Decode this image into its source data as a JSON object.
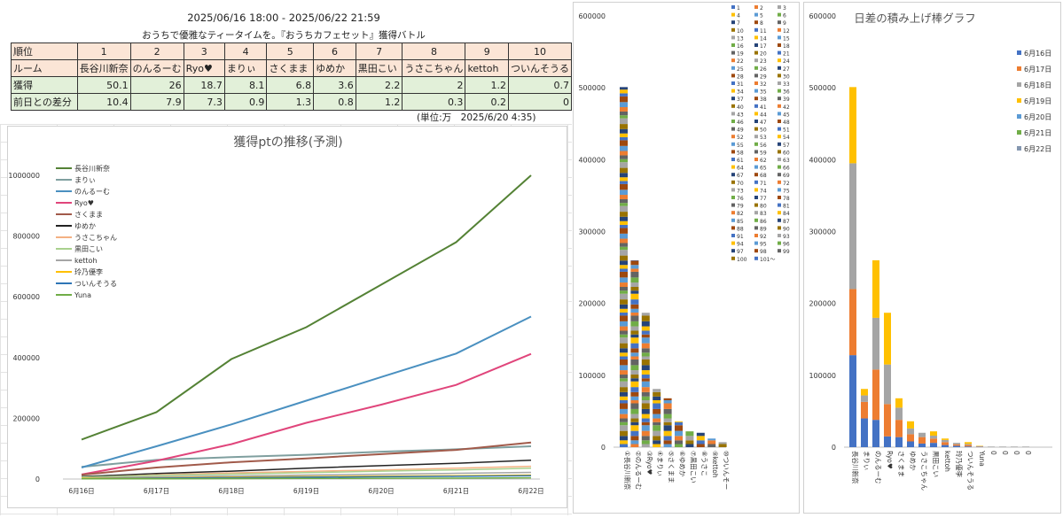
{
  "header": {
    "date_range": "2025/06/16 18:00 - 2025/06/22 21:59",
    "battle_title": "おうちで優雅なティータイムを。『おうちカフェセット』獲得バトル",
    "unit_note": "(単位:万　2025/6/20 4:35)"
  },
  "table": {
    "row_labels": [
      "順位",
      "ルーム",
      "獲得",
      "前日との差分"
    ],
    "ranks": [
      "1",
      "2",
      "3",
      "4",
      "5",
      "6",
      "7",
      "8",
      "9",
      "10"
    ],
    "rooms": [
      "長谷川新奈",
      "のんるーむ",
      "Ryo♥",
      "まりぃ",
      "さくまま",
      "ゆめか",
      "黒田こい",
      "うさこちゃん",
      "kettoh",
      "ついんそうる"
    ],
    "gains": [
      "50.1",
      "26",
      "18.7",
      "8.1",
      "6.8",
      "3.6",
      "2.2",
      "2",
      "1.2",
      "0.7"
    ],
    "diffs": [
      "10.4",
      "7.9",
      "7.3",
      "0.9",
      "1.3",
      "0.8",
      "1.2",
      "0.3",
      "0.2",
      "0"
    ]
  },
  "chart_data": [
    {
      "type": "line",
      "title": "獲得ptの推移(予測)",
      "x": [
        "6月16日",
        "6月17日",
        "6月18日",
        "6月19日",
        "6月20日",
        "6月21日",
        "6月22日"
      ],
      "ylim": [
        0,
        1000000
      ],
      "yticks": [
        0,
        200000,
        400000,
        600000,
        800000,
        1000000
      ],
      "grid": false,
      "legend_position": "top-left",
      "series": [
        {
          "name": "長谷川新奈",
          "color": "#548235",
          "values": [
            130000,
            220000,
            395000,
            500000,
            640000,
            780000,
            1000000
          ]
        },
        {
          "name": "まりぃ",
          "color": "#7f9f9f",
          "values": [
            40000,
            63000,
            72000,
            80000,
            90000,
            98000,
            108000
          ]
        },
        {
          "name": "のんるーむ",
          "color": "#4a90c0",
          "values": [
            38000,
            108000,
            180000,
            258000,
            336000,
            413000,
            535000
          ]
        },
        {
          "name": "Ryo♥",
          "color": "#e0457b",
          "values": [
            15000,
            60000,
            115000,
            185000,
            245000,
            310000,
            412000
          ]
        },
        {
          "name": "さくまま",
          "color": "#a15a4a",
          "values": [
            14000,
            38000,
            55000,
            68000,
            82000,
            96000,
            120000
          ]
        },
        {
          "name": "ゆめか",
          "color": "#222222",
          "values": [
            8000,
            18000,
            26000,
            36000,
            44000,
            52000,
            62000
          ]
        },
        {
          "name": "うさこちゃん",
          "color": "#f4b183",
          "values": [
            5000,
            14000,
            20000,
            25000,
            30000,
            36000,
            42000
          ]
        },
        {
          "name": "黒田こい",
          "color": "#a9d18e",
          "values": [
            6000,
            12000,
            16000,
            21000,
            26000,
            30000,
            36000
          ]
        },
        {
          "name": "kettoh",
          "color": "#a5a5a5",
          "values": [
            3000,
            7000,
            10000,
            13000,
            16000,
            19000,
            22000
          ]
        },
        {
          "name": "玲乃優李",
          "color": "#ffc000",
          "values": [
            2000,
            4000,
            6000,
            8000,
            10000,
            11000,
            13000
          ]
        },
        {
          "name": "ついんそうる",
          "color": "#2e75b6",
          "values": [
            1000,
            3000,
            4500,
            6000,
            7500,
            9000,
            11000
          ]
        },
        {
          "name": "Yuna",
          "color": "#70ad47",
          "values": [
            500,
            1000,
            1500,
            2000,
            2500,
            3000,
            4000
          ]
        }
      ]
    },
    {
      "type": "bar",
      "stacked": true,
      "ylim": [
        0,
        600000
      ],
      "yticks": [
        0,
        100000,
        200000,
        300000,
        400000,
        500000,
        600000
      ],
      "categories": [
        "①長谷川新奈",
        "②のんるーむ",
        "③Ryo♥",
        "④まりぃ",
        "⑤さくまま",
        "⑥ゆめか",
        "⑦黒田こい",
        "⑧うさこ",
        "⑨kettoh",
        "⑩ついんそー"
      ],
      "totals": [
        501000,
        260000,
        187000,
        81000,
        68000,
        36000,
        22000,
        20000,
        12000,
        7000
      ],
      "legend_position": "right",
      "legend": [
        "1",
        "2",
        "3",
        "4",
        "5",
        "6",
        "7",
        "8",
        "9",
        "10",
        "11",
        "12",
        "13",
        "14",
        "15",
        "16",
        "17",
        "18",
        "19",
        "20",
        "21",
        "22",
        "23",
        "24",
        "25",
        "26",
        "27",
        "28",
        "29",
        "30",
        "31",
        "32",
        "33",
        "34",
        "35",
        "36",
        "37",
        "38",
        "39",
        "40",
        "41",
        "42",
        "43",
        "44",
        "45",
        "46",
        "47",
        "48",
        "49",
        "50",
        "51",
        "52",
        "53",
        "54",
        "55",
        "56",
        "57",
        "58",
        "59",
        "60",
        "61",
        "62",
        "63",
        "64",
        "65",
        "66",
        "67",
        "68",
        "69",
        "70",
        "71",
        "72",
        "73",
        "74",
        "75",
        "76",
        "77",
        "78",
        "79",
        "80",
        "81",
        "82",
        "83",
        "84",
        "85",
        "86",
        "87",
        "88",
        "89",
        "90",
        "91",
        "92",
        "93",
        "94",
        "95",
        "96",
        "97",
        "98",
        "99",
        "100",
        "101～"
      ],
      "palette": [
        "#4472c4",
        "#ed7d31",
        "#a5a5a5",
        "#ffc000",
        "#5b9bd5",
        "#70ad47",
        "#264478",
        "#9e480e",
        "#636363",
        "#997300"
      ]
    },
    {
      "type": "bar",
      "stacked": true,
      "title": "日差の積み上げ棒グラフ",
      "ylim": [
        0,
        600000
      ],
      "yticks": [
        0,
        100000,
        200000,
        300000,
        400000,
        500000,
        600000
      ],
      "legend_position": "right",
      "categories": [
        "長谷川新奈",
        "まりぃ",
        "のんるーむ",
        "Ryo♥",
        "さくまま",
        "ゆめか",
        "うさこちゃん",
        "黒田こい",
        "kettoh",
        "玲乃優李",
        "ついんそうる",
        "Yuna"
      ],
      "zero_labels": [
        "0",
        "0",
        "0",
        "0"
      ],
      "series": [
        {
          "name": "6月16日",
          "color": "#4472c4",
          "values": [
            128000,
            40000,
            38000,
            15000,
            14000,
            8000,
            5000,
            6000,
            3000,
            2000,
            1000,
            500
          ]
        },
        {
          "name": "6月17日",
          "color": "#ed7d31",
          "values": [
            92000,
            23000,
            70000,
            45000,
            24000,
            10000,
            9000,
            6000,
            4000,
            2000,
            2000,
            500
          ]
        },
        {
          "name": "6月18日",
          "color": "#a5a5a5",
          "values": [
            175000,
            9000,
            72000,
            55000,
            17000,
            8000,
            6000,
            4000,
            3000,
            2000,
            1500,
            500
          ]
        },
        {
          "name": "6月19日",
          "color": "#ffc000",
          "values": [
            106000,
            9000,
            80000,
            72000,
            13000,
            10000,
            0,
            6000,
            2000,
            0,
            2500,
            500
          ]
        },
        {
          "name": "6月20日",
          "color": "#5b9bd5",
          "values": [
            0,
            0,
            0,
            0,
            0,
            0,
            0,
            0,
            0,
            0,
            0,
            0
          ]
        },
        {
          "name": "6月21日",
          "color": "#70ad47",
          "values": [
            0,
            0,
            0,
            0,
            0,
            0,
            0,
            0,
            0,
            0,
            0,
            0
          ]
        },
        {
          "name": "6月22日",
          "color": "#8497b0",
          "values": [
            0,
            0,
            0,
            0,
            0,
            0,
            0,
            0,
            0,
            0,
            0,
            0
          ]
        }
      ]
    }
  ]
}
